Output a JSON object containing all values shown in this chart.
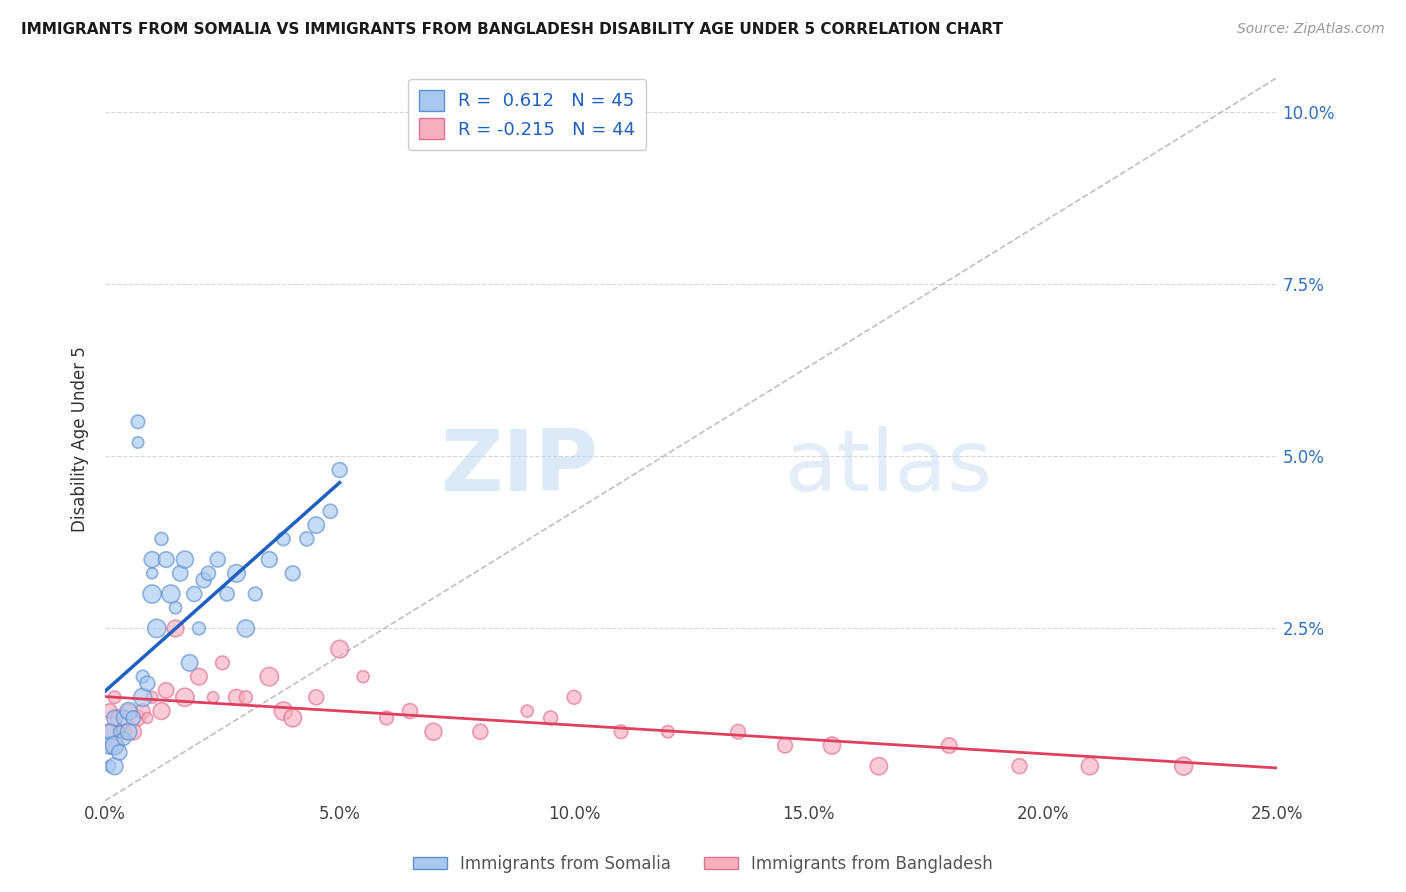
{
  "title": "IMMIGRANTS FROM SOMALIA VS IMMIGRANTS FROM BANGLADESH DISABILITY AGE UNDER 5 CORRELATION CHART",
  "source": "Source: ZipAtlas.com",
  "ylabel": "Disability Age Under 5",
  "xlim": [
    0.0,
    0.25
  ],
  "ylim": [
    0.0,
    0.105
  ],
  "x_ticks": [
    0.0,
    0.05,
    0.1,
    0.15,
    0.2,
    0.25
  ],
  "x_tick_labels": [
    "0.0%",
    "5.0%",
    "10.0%",
    "15.0%",
    "20.0%",
    "25.0%"
  ],
  "y_ticks": [
    0.0,
    0.025,
    0.05,
    0.075,
    0.1
  ],
  "y_tick_labels": [
    "",
    "2.5%",
    "5.0%",
    "7.5%",
    "10.0%"
  ],
  "somalia_color": "#a8c8f0",
  "somalia_edge": "#6090d0",
  "bangladesh_color": "#f8b0c0",
  "bangladesh_edge": "#e07090",
  "somalia_line_color": "#2060c0",
  "bangladesh_line_color": "#e04060",
  "trendline_dashed_color": "#b0b0b0",
  "R_somalia": 0.612,
  "N_somalia": 45,
  "R_bangladesh": -0.215,
  "N_bangladesh": 44,
  "somalia_x": [
    0.001,
    0.001,
    0.001,
    0.002,
    0.002,
    0.002,
    0.003,
    0.003,
    0.004,
    0.004,
    0.005,
    0.005,
    0.006,
    0.007,
    0.007,
    0.008,
    0.008,
    0.009,
    0.01,
    0.01,
    0.01,
    0.011,
    0.012,
    0.013,
    0.014,
    0.015,
    0.016,
    0.017,
    0.018,
    0.019,
    0.02,
    0.021,
    0.022,
    0.024,
    0.026,
    0.028,
    0.03,
    0.032,
    0.035,
    0.038,
    0.04,
    0.043,
    0.045,
    0.048,
    0.05
  ],
  "somalia_y": [
    0.005,
    0.008,
    0.01,
    0.005,
    0.008,
    0.012,
    0.007,
    0.01,
    0.009,
    0.012,
    0.01,
    0.013,
    0.012,
    0.052,
    0.055,
    0.015,
    0.018,
    0.017,
    0.03,
    0.033,
    0.035,
    0.025,
    0.038,
    0.035,
    0.03,
    0.028,
    0.033,
    0.035,
    0.02,
    0.03,
    0.025,
    0.032,
    0.033,
    0.035,
    0.03,
    0.033,
    0.025,
    0.03,
    0.035,
    0.038,
    0.033,
    0.038,
    0.04,
    0.042,
    0.048
  ],
  "bangladesh_x": [
    0.001,
    0.001,
    0.002,
    0.002,
    0.003,
    0.004,
    0.005,
    0.006,
    0.007,
    0.008,
    0.009,
    0.01,
    0.012,
    0.013,
    0.015,
    0.017,
    0.02,
    0.023,
    0.025,
    0.028,
    0.03,
    0.035,
    0.038,
    0.04,
    0.045,
    0.05,
    0.055,
    0.06,
    0.065,
    0.07,
    0.08,
    0.09,
    0.095,
    0.1,
    0.11,
    0.12,
    0.135,
    0.145,
    0.155,
    0.165,
    0.18,
    0.195,
    0.21,
    0.23
  ],
  "bangladesh_y": [
    0.01,
    0.013,
    0.008,
    0.015,
    0.012,
    0.01,
    0.013,
    0.01,
    0.012,
    0.013,
    0.012,
    0.015,
    0.013,
    0.016,
    0.025,
    0.015,
    0.018,
    0.015,
    0.02,
    0.015,
    0.015,
    0.018,
    0.013,
    0.012,
    0.015,
    0.022,
    0.018,
    0.012,
    0.013,
    0.01,
    0.01,
    0.013,
    0.012,
    0.015,
    0.01,
    0.01,
    0.01,
    0.008,
    0.008,
    0.005,
    0.008,
    0.005,
    0.005,
    0.005
  ],
  "watermark_zip": "ZIP",
  "watermark_atlas": "atlas",
  "background_color": "#ffffff",
  "grid_color": "#d8d8d8"
}
